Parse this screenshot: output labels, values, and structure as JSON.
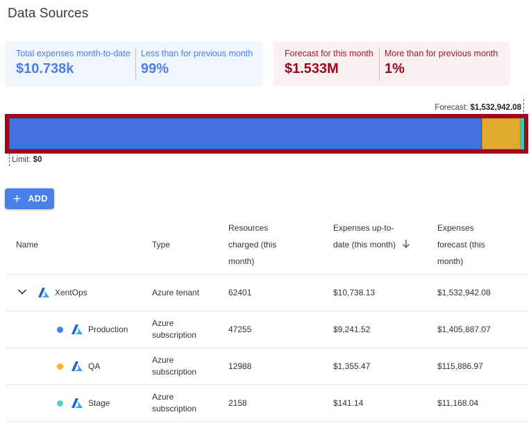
{
  "page": {
    "title": "Data Sources"
  },
  "summary": {
    "total": {
      "label": "Total expenses month-to-date",
      "value": "$10.738k"
    },
    "less": {
      "label": "Less than for previous month",
      "value": "99%"
    },
    "forecast": {
      "label": "Forecast for this month",
      "value": "$1.533M"
    },
    "more": {
      "label": "More than for previous month",
      "value": "1%"
    }
  },
  "bar": {
    "forecast_prefix": "Forecast: ",
    "forecast_value": "$1,532,942.08",
    "limit_prefix": "Limit: ",
    "limit_value": "$0",
    "segments": [
      {
        "name": "Production",
        "value": 1405887.07,
        "color": "#4471e0"
      },
      {
        "name": "QA",
        "value": 115886.97,
        "color": "#e0aa30"
      },
      {
        "name": "Stage",
        "value": 11168.04,
        "color": "#3ec7b7"
      }
    ]
  },
  "toolbar": {
    "add_label": "ADD",
    "add_icon": "plus-icon"
  },
  "table": {
    "headers": {
      "name": "Name",
      "type": "Type",
      "resources": "Resources charged (this month)",
      "expenses": "Expenses up-to-date (this month)",
      "forecast": "Expenses forecast (this month)"
    },
    "rows": [
      {
        "name": "XentOps",
        "type": "Azure tenant",
        "resources": "62401",
        "expenses": "$10,738.13",
        "forecast": "$1,532,942.08",
        "icon": "azure-icon"
      },
      {
        "name": "Production",
        "type": "Azure subscription",
        "resources": "47255",
        "expenses": "$9,241.52",
        "forecast": "$1,405,887.07",
        "dot_color": "#4a7fe8",
        "icon": "azure-icon"
      },
      {
        "name": "QA",
        "type": "Azure subscription",
        "resources": "12988",
        "expenses": "$1,355.47",
        "forecast": "$115,886.97",
        "dot_color": "#f4b822",
        "icon": "azure-icon"
      },
      {
        "name": "Stage",
        "type": "Azure subscription",
        "resources": "2158",
        "expenses": "$141.14",
        "forecast": "$11,168.04",
        "dot_color": "#4fd1c0",
        "icon": "azure-icon"
      }
    ]
  }
}
